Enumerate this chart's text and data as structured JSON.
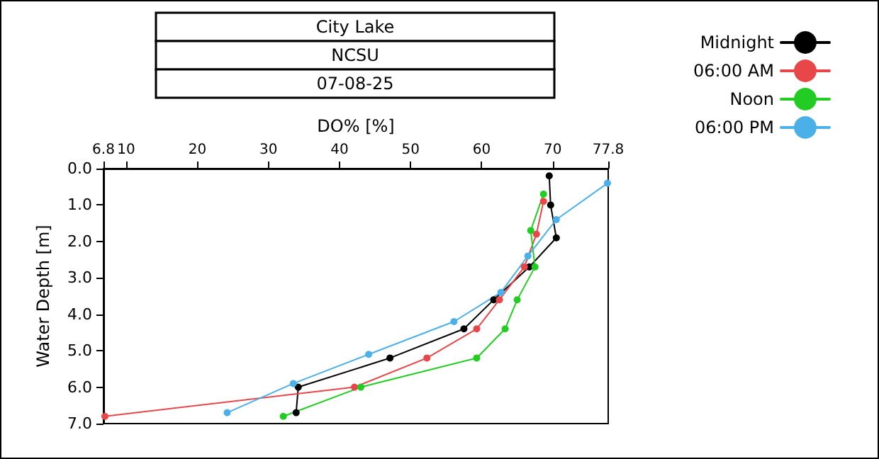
{
  "chart_data": {
    "type": "line",
    "title": "City Lake",
    "subtitle": "NCSU",
    "annotations": [
      "07-08-25"
    ],
    "xlabel": "DO% [%]",
    "ylabel": "Water Depth [m]",
    "xlim": [
      6.8,
      77.8
    ],
    "xticks": [
      6.8,
      10,
      20,
      30,
      40,
      50,
      60,
      70,
      77.8
    ],
    "ylim": [
      7.0,
      0.0
    ],
    "yticks": [
      {
        "value": 0,
        "label": "0.0"
      },
      {
        "value": 1,
        "label": "1.0"
      },
      {
        "value": 2,
        "label": "2.0"
      },
      {
        "value": 3,
        "label": "3.0"
      },
      {
        "value": 4,
        "label": "4.0"
      },
      {
        "value": 5,
        "label": "5.0"
      },
      {
        "value": 6,
        "label": "6.0"
      },
      {
        "value": 7,
        "label": "7.0"
      }
    ],
    "grid": false,
    "legend": "top right",
    "marker": "circle",
    "line_style": "solid",
    "series": [
      {
        "name": "Midnight",
        "color": "#000000",
        "x": [
          69.5,
          69.7,
          70.5,
          66.7,
          61.7,
          57.5,
          47.1,
          34.2,
          33.9
        ],
        "values": [
          0.2,
          1.0,
          1.9,
          2.7,
          3.6,
          4.4,
          5.2,
          6.0,
          6.7
        ]
      },
      {
        "name": "06:00 AM",
        "color": "#e8474a",
        "x": [
          68.7,
          67.7,
          66.0,
          62.5,
          59.3,
          52.3,
          42.1,
          7.0
        ],
        "values": [
          0.9,
          1.8,
          2.7,
          3.6,
          4.4,
          5.2,
          6.0,
          6.8
        ]
      },
      {
        "name": "Noon",
        "color": "#22cc22",
        "x": [
          68.7,
          66.9,
          67.5,
          65.0,
          63.3,
          59.3,
          43.0,
          32.1
        ],
        "values": [
          0.7,
          1.7,
          2.7,
          3.6,
          4.4,
          5.2,
          6.0,
          6.8
        ]
      },
      {
        "name": "06:00 PM",
        "color": "#4cb0e8",
        "x": [
          77.7,
          70.5,
          66.5,
          62.7,
          56.1,
          44.1,
          33.5,
          24.2
        ],
        "values": [
          0.4,
          1.4,
          2.4,
          3.4,
          4.2,
          5.1,
          5.9,
          6.7
        ]
      }
    ]
  }
}
